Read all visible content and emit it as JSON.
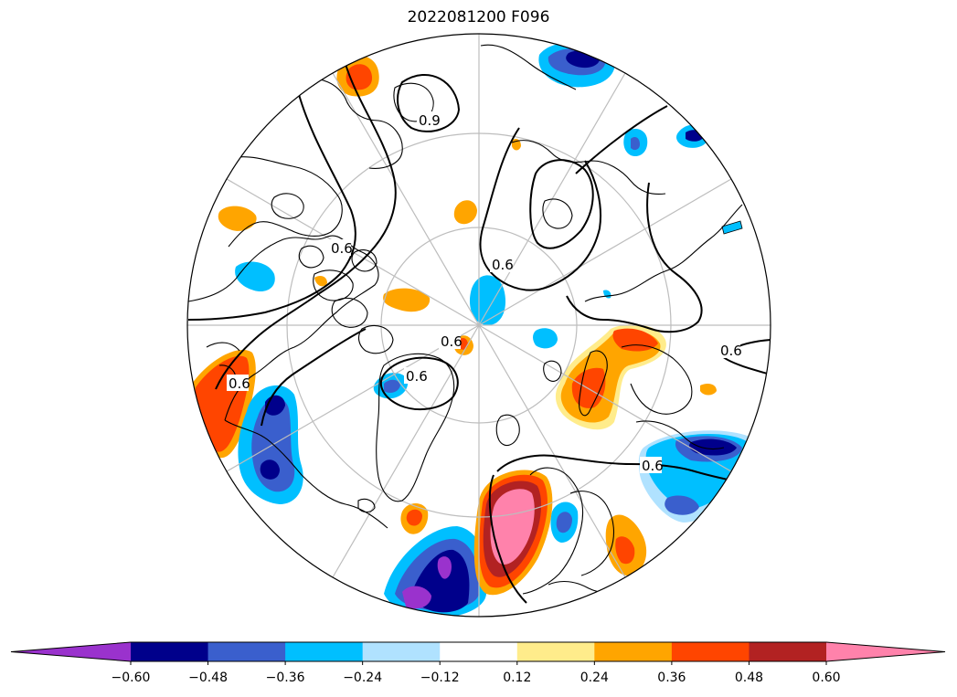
{
  "title": "2022081200 F096",
  "colorbar": {
    "colors": [
      "#9a32cd",
      "#00008b",
      "#3a5fcd",
      "#00bfff",
      "#b0e2ff",
      "#ffffff",
      "#ffec8b",
      "#ffa500",
      "#ff4500",
      "#b22222",
      "#ff82ab"
    ],
    "labels": [
      "−0.60",
      "−0.48",
      "−0.36",
      "−0.24",
      "−0.12",
      "0.12",
      "0.24",
      "0.36",
      "0.48",
      "0.60"
    ],
    "extend": "both"
  },
  "contours": {
    "line_color": "#000000",
    "labels": [
      "0.9",
      "0.6",
      "0.6",
      "0.6",
      "0.6",
      "0.6",
      "0.6",
      "0.6"
    ]
  },
  "map": {
    "projection": "north-polar-stereographic",
    "coastline_color": "#000000",
    "graticule_color": "#bdbdbd",
    "land_fill": "none"
  }
}
